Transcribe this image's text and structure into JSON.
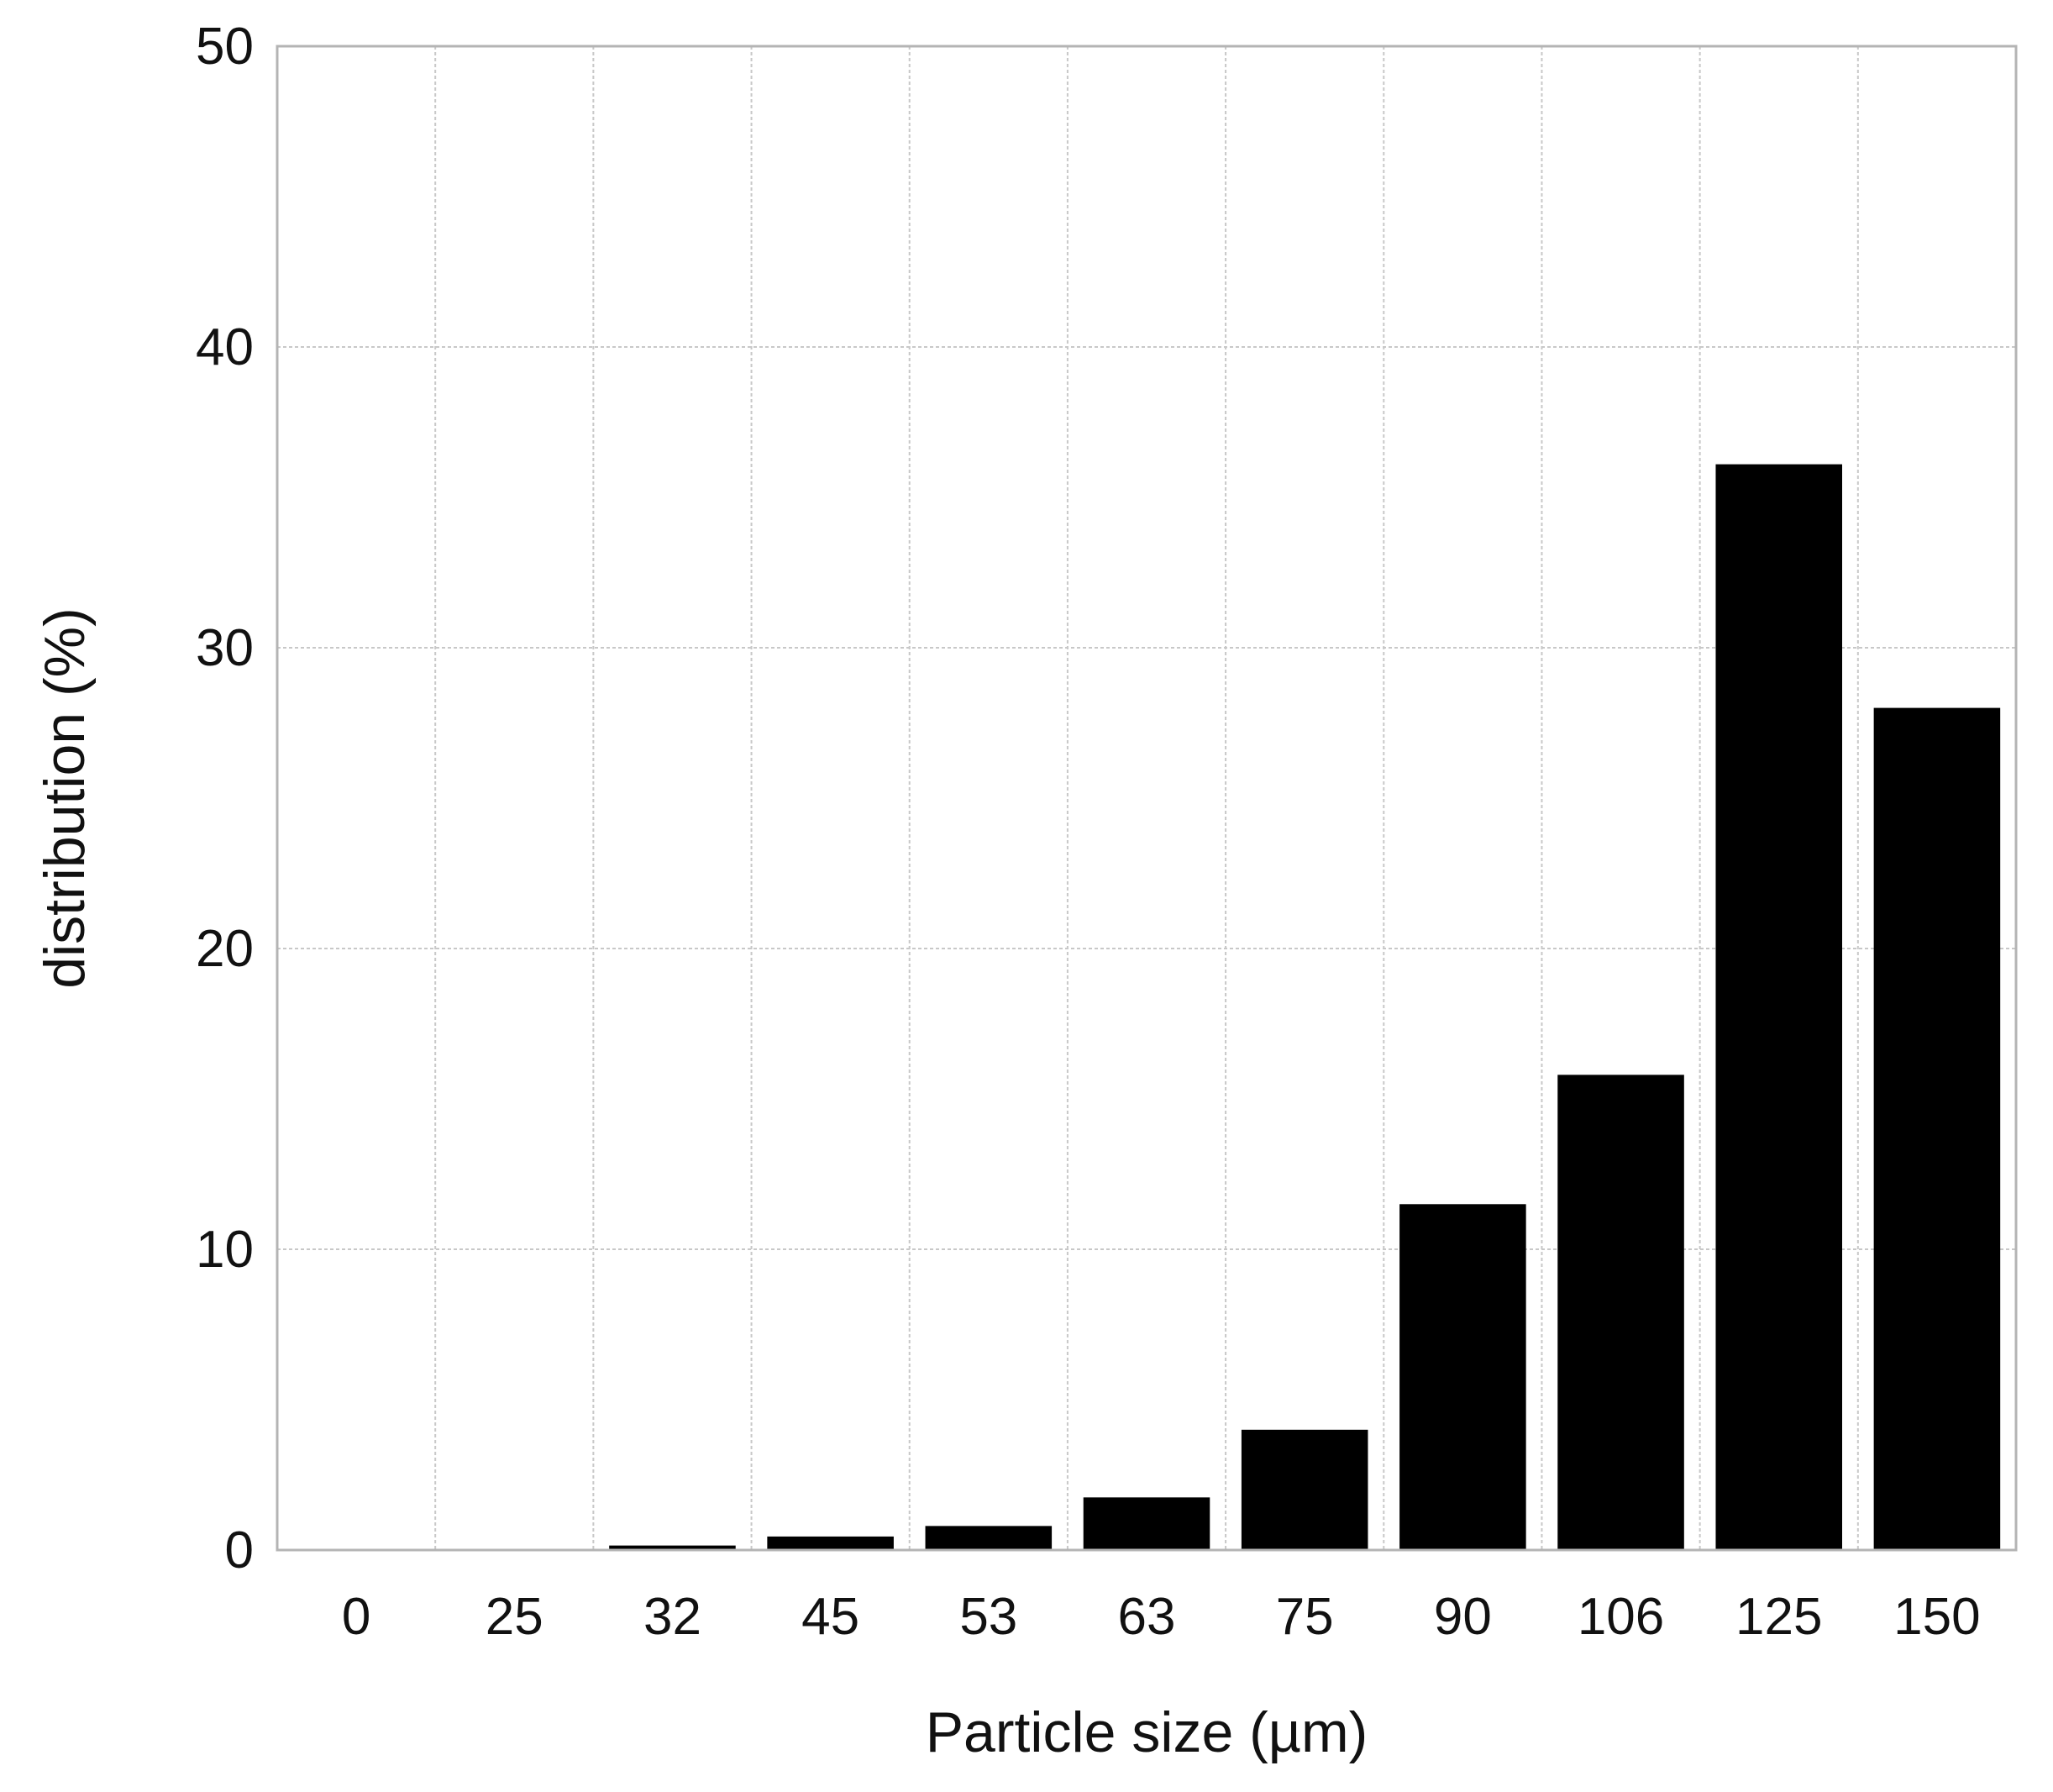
{
  "chart_data": {
    "type": "bar",
    "title": "",
    "xlabel": "Particle size (µm)",
    "ylabel": "distribution (%)",
    "categories": [
      "0",
      "25",
      "32",
      "45",
      "53",
      "63",
      "75",
      "90",
      "106",
      "125",
      "150"
    ],
    "values": [
      0,
      0,
      0.15,
      0.45,
      0.8,
      1.75,
      4.0,
      11.5,
      15.8,
      36.1,
      28.0
    ],
    "ylim": [
      0,
      50
    ],
    "yticks": [
      0,
      10,
      20,
      30,
      40,
      50
    ],
    "grid": true,
    "legend": "none",
    "colors": {
      "bar": "#000000",
      "grid": "#c8c8c8",
      "frame": "#b4b4b4",
      "text": "#111111"
    }
  }
}
